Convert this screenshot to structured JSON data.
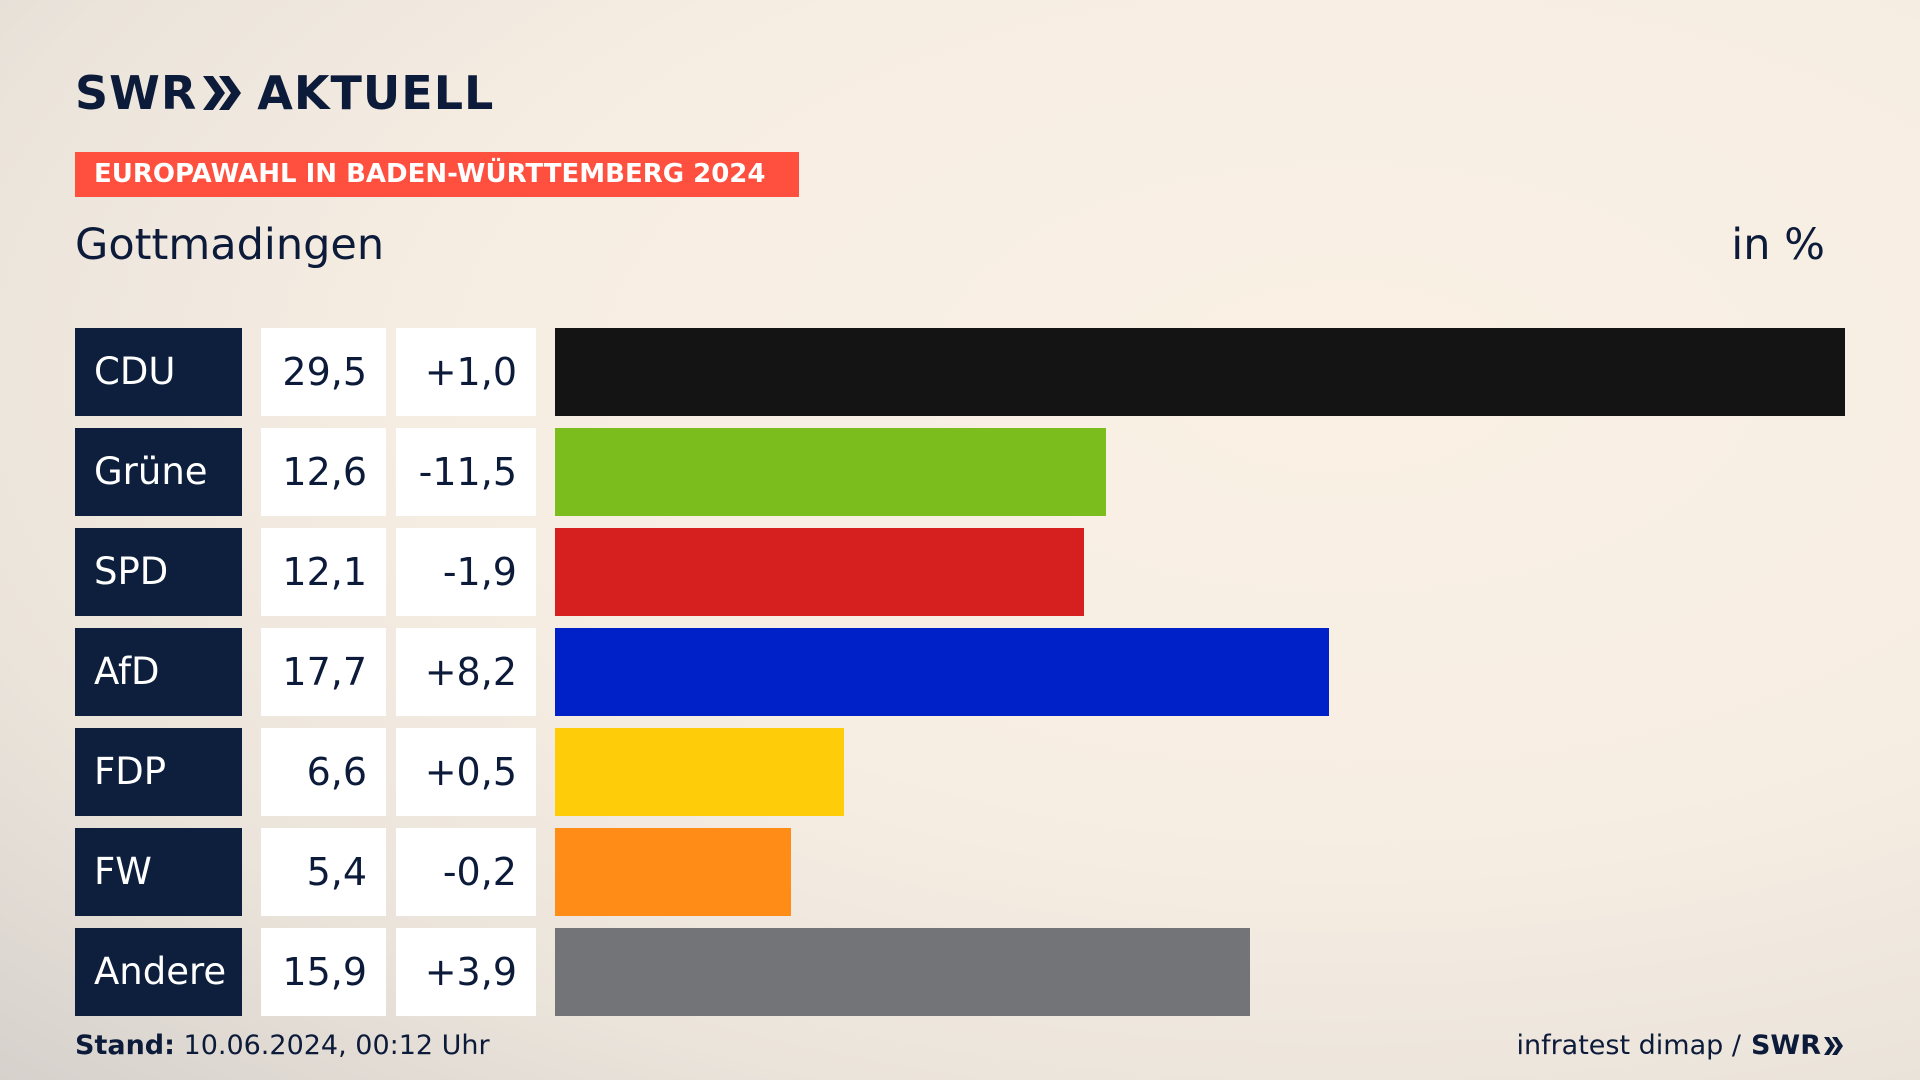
{
  "logo": {
    "brand": "SWR",
    "product": "AKTUELL"
  },
  "banner": "EUROPAWAHL IN BADEN-WÜRTTEMBERG 2024",
  "place": "Gottmadingen",
  "unit": "in %",
  "chart_data": {
    "type": "bar",
    "title": "Gottmadingen",
    "unit": "in %",
    "xlim": [
      0,
      29.5
    ],
    "categories": [
      "CDU",
      "Grüne",
      "SPD",
      "AfD",
      "FDP",
      "FW",
      "Andere"
    ],
    "values": [
      29.5,
      12.6,
      12.1,
      17.7,
      6.6,
      5.4,
      15.9
    ],
    "value_labels": [
      "29,5",
      "12,6",
      "12,1",
      "17,7",
      "6,6",
      "5,4",
      "15,9"
    ],
    "diff_labels": [
      "+1,0",
      "-11,5",
      "-1,9",
      "+8,2",
      "+0,5",
      "-0,2",
      "+3,9"
    ],
    "colors": [
      "#141414",
      "#7bbd1d",
      "#d61f1f",
      "#0021c7",
      "#ffcc0a",
      "#ff8c17",
      "#727478"
    ]
  },
  "footer": {
    "stand_label": "Stand:",
    "stand_value": "10.06.2024, 00:12 Uhr",
    "source": "infratest dimap /",
    "source_brand": "SWR"
  }
}
